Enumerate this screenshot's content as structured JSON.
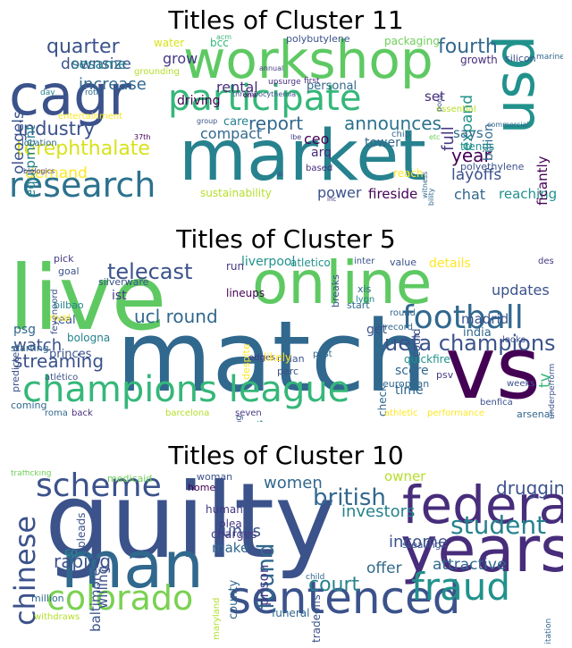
{
  "clusters": [
    {
      "title": "Titles of Cluster 11",
      "words": [
        {
          "t": "market",
          "c": "#26828e"
        },
        {
          "t": "workshop",
          "c": "#5ec962"
        },
        {
          "t": "cagr",
          "c": "#3b528b"
        },
        {
          "t": "participate",
          "c": "#35b779"
        },
        {
          "t": "usd",
          "c": "#21918c"
        },
        {
          "t": "research",
          "c": "#2c728e"
        },
        {
          "t": "terephthalate",
          "c": "#d8e219"
        },
        {
          "t": "industry",
          "c": "#3b528b"
        },
        {
          "t": "report",
          "c": "#31688e"
        },
        {
          "t": "announces",
          "c": "#2c728e"
        },
        {
          "t": "fourth",
          "c": "#31688e"
        },
        {
          "t": "quarter",
          "c": "#3b528b"
        },
        {
          "t": "increase",
          "c": "#31688e"
        },
        {
          "t": "downsize",
          "c": "#3b528b"
        },
        {
          "t": "sesame",
          "c": "#26828e"
        },
        {
          "t": "grow",
          "c": "#443983"
        },
        {
          "t": "driving",
          "c": "#440154"
        },
        {
          "t": "rental",
          "c": "#472d7b"
        },
        {
          "t": "compact",
          "c": "#31688e"
        },
        {
          "t": "year",
          "c": "#440154"
        },
        {
          "t": "layoffs",
          "c": "#3b528b"
        },
        {
          "t": "ceo",
          "c": "#440154"
        },
        {
          "t": "arq",
          "c": "#472d7b"
        },
        {
          "t": "power",
          "c": "#3b528b"
        },
        {
          "t": "fireside",
          "c": "#440154"
        },
        {
          "t": "chat",
          "c": "#31688e"
        },
        {
          "t": "reaching",
          "c": "#21918c"
        },
        {
          "t": "demand",
          "c": "#fde725"
        },
        {
          "t": "equipment",
          "c": "#26828e"
        },
        {
          "t": "oleogels",
          "c": "#3b528b"
        },
        {
          "t": "full",
          "c": "#443983"
        },
        {
          "t": "expand",
          "c": "#21918c"
        },
        {
          "t": "significantly",
          "c": "#440154"
        },
        {
          "t": "billion",
          "c": "#31688e"
        },
        {
          "t": "set",
          "c": "#472d7b"
        },
        {
          "t": "says",
          "c": "#31688e"
        },
        {
          "t": "trends",
          "c": "#21918c"
        },
        {
          "t": "polyethylene",
          "c": "#3b528b"
        },
        {
          "t": "sustainability",
          "c": "#b5de2b"
        },
        {
          "t": "tower",
          "c": "#31688e"
        },
        {
          "t": "care",
          "c": "#26828e"
        },
        {
          "t": "personal",
          "c": "#31688e"
        },
        {
          "t": "water",
          "c": "#d8e219"
        },
        {
          "t": "bcc",
          "c": "#35b779"
        },
        {
          "t": "packaging",
          "c": "#6ece58"
        },
        {
          "t": "growth",
          "c": "#472d7b"
        },
        {
          "t": "silicon",
          "c": "#3b528b"
        },
        {
          "t": "polybutylene",
          "c": "#3b528b"
        },
        {
          "t": "grounding",
          "c": "#b5de2b"
        },
        {
          "t": "essential",
          "c": "#b5de2b"
        },
        {
          "t": "entertainment",
          "c": "#fde725"
        },
        {
          "t": "reach",
          "c": "#fde725"
        },
        {
          "t": "based",
          "c": "#472d7b"
        },
        {
          "t": "location",
          "c": "#31688e"
        },
        {
          "t": "biologics",
          "c": "#443983"
        },
        {
          "t": "chip",
          "c": "#31688e"
        },
        {
          "t": "acm",
          "c": "#35b779"
        },
        {
          "t": "annual",
          "c": "#443983"
        },
        {
          "t": "first",
          "c": "#472d7b"
        },
        {
          "t": "upsurge",
          "c": "#472d7b"
        },
        {
          "t": "thrombocythemia",
          "c": "#3b528b"
        },
        {
          "t": "marine",
          "c": "#31688e"
        },
        {
          "t": "day",
          "c": "#26828e"
        },
        {
          "t": "roth",
          "c": "#31688e"
        },
        {
          "t": "group",
          "c": "#3b528b"
        },
        {
          "t": "lbe",
          "c": "#443983"
        },
        {
          "t": "37th",
          "c": "#440154"
        },
        {
          "t": "commercial",
          "c": "#31688e"
        },
        {
          "t": "etc",
          "c": "#6ece58"
        },
        {
          "t": "ai",
          "c": "#3b528b"
        },
        {
          "t": "inc",
          "c": "#443983"
        },
        {
          "t": "witness",
          "c": "#31688e"
        },
        {
          "t": "availability",
          "c": "#31688e"
        },
        {
          "t": "one",
          "c": "#440154"
        },
        {
          "t": "pony",
          "c": "#3b528b"
        }
      ]
    },
    {
      "title": "Titles of Cluster 5",
      "words": [
        {
          "t": "match",
          "c": "#31688e"
        },
        {
          "t": "live",
          "c": "#5ec962"
        },
        {
          "t": "online",
          "c": "#5ec962"
        },
        {
          "t": "vs",
          "c": "#440154"
        },
        {
          "t": "champions league",
          "c": "#35b779"
        },
        {
          "t": "football",
          "c": "#31688e"
        },
        {
          "t": "uefa champions",
          "c": "#3b528b"
        },
        {
          "t": "telecast",
          "c": "#3b528b"
        },
        {
          "t": "ucl round",
          "c": "#31688e"
        },
        {
          "t": "streaming",
          "c": "#3b528b"
        },
        {
          "t": "watch",
          "c": "#3b528b"
        },
        {
          "t": "madrid",
          "c": "#3b528b"
        },
        {
          "t": "updates",
          "c": "#3b528b"
        },
        {
          "t": "india",
          "c": "#31688e"
        },
        {
          "t": "liverpool",
          "c": "#21918c"
        },
        {
          "t": "tv",
          "c": "#35b779"
        },
        {
          "t": "details",
          "c": "#fde725"
        },
        {
          "t": "score",
          "c": "#31688e"
        },
        {
          "t": "time",
          "c": "#31688e"
        },
        {
          "t": "get",
          "c": "#3b528b"
        },
        {
          "t": "ist",
          "c": "#443983"
        },
        {
          "t": "psg",
          "c": "#31688e"
        },
        {
          "t": "real",
          "c": "#3b528b"
        },
        {
          "t": "princes",
          "c": "#3b528b"
        },
        {
          "t": "bologna",
          "c": "#26828e"
        },
        {
          "t": "atletico",
          "c": "#21918c"
        },
        {
          "t": "lineups",
          "c": "#440154"
        },
        {
          "t": "run",
          "c": "#443983"
        },
        {
          "t": "pick",
          "c": "#443983"
        },
        {
          "t": "goal",
          "c": "#3b528b"
        },
        {
          "t": "silverware",
          "c": "#3b528b"
        },
        {
          "t": "feyenoord",
          "c": "#3b528b"
        },
        {
          "t": "bilbao",
          "c": "#26828e"
        },
        {
          "t": "rival",
          "c": "#fde725"
        },
        {
          "t": "predicted",
          "c": "#3b528b"
        },
        {
          "t": "starting",
          "c": "#31688e"
        },
        {
          "t": "atlético",
          "c": "#3b528b"
        },
        {
          "t": "coming",
          "c": "#31688e"
        },
        {
          "t": "roma",
          "c": "#31688e"
        },
        {
          "t": "back",
          "c": "#472d7b"
        },
        {
          "t": "barcelona",
          "c": "#b5de2b"
        },
        {
          "t": "seven",
          "c": "#443983"
        },
        {
          "t": "edges",
          "c": "#443983"
        },
        {
          "t": "milan",
          "c": "#3b528b"
        },
        {
          "t": "parc",
          "c": "#3b528b"
        },
        {
          "t": "past",
          "c": "#31688e"
        },
        {
          "t": "likely",
          "c": "#fde725"
        },
        {
          "t": "predictions",
          "c": "#21918c"
        },
        {
          "t": "disappointing",
          "c": "#3b528b"
        },
        {
          "t": "despite",
          "c": "#fde725"
        },
        {
          "t": "start",
          "c": "#31688e"
        },
        {
          "t": "breaks",
          "c": "#3b528b"
        },
        {
          "t": "xis",
          "c": "#31688e"
        },
        {
          "t": "lyon",
          "c": "#26828e"
        },
        {
          "t": "inter",
          "c": "#3b528b"
        },
        {
          "t": "value",
          "c": "#3b528b"
        },
        {
          "t": "could",
          "c": "#3b528b"
        },
        {
          "t": "round",
          "c": "#31688e"
        },
        {
          "t": "record",
          "c": "#31688e"
        },
        {
          "t": "check",
          "c": "#31688e"
        },
        {
          "t": "quickfire",
          "c": "#21918c"
        },
        {
          "t": "european",
          "c": "#31688e"
        },
        {
          "t": "psv",
          "c": "#443983"
        },
        {
          "t": "athletic",
          "c": "#fde725"
        },
        {
          "t": "benfica",
          "c": "#3b528b"
        },
        {
          "t": "performance",
          "c": "#fde725"
        },
        {
          "t": "weeks",
          "c": "#3b528b"
        },
        {
          "t": "arsenal",
          "c": "#31688e"
        },
        {
          "t": "looks",
          "c": "#3b528b"
        },
        {
          "t": "underperform",
          "c": "#3b528b"
        },
        {
          "t": "des",
          "c": "#443983"
        }
      ]
    },
    {
      "title": "Titles of Cluster 10",
      "words": [
        {
          "t": "guilty",
          "c": "#3b528b"
        },
        {
          "t": "man",
          "c": "#31688e"
        },
        {
          "t": "years",
          "c": "#472d7b"
        },
        {
          "t": "federal",
          "c": "#472d7b"
        },
        {
          "t": "sentenced",
          "c": "#3b528b"
        },
        {
          "t": "fraud",
          "c": "#21918c"
        },
        {
          "t": "colorado",
          "c": "#7ad151"
        },
        {
          "t": "scheme",
          "c": "#3b528b"
        },
        {
          "t": "chinese",
          "c": "#3b528b"
        },
        {
          "t": "student",
          "c": "#26828e"
        },
        {
          "t": "found",
          "c": "#31688e"
        },
        {
          "t": "british",
          "c": "#31688e"
        },
        {
          "t": "drugging",
          "c": "#3b528b"
        },
        {
          "t": "women",
          "c": "#31688e"
        },
        {
          "t": "court",
          "c": "#26828e"
        },
        {
          "t": "raping",
          "c": "#3b528b"
        },
        {
          "t": "funds",
          "c": "#3b528b"
        },
        {
          "t": "investors",
          "c": "#26828e"
        },
        {
          "t": "income",
          "c": "#3b528b"
        },
        {
          "t": "offer",
          "c": "#31688e"
        },
        {
          "t": "attractive",
          "c": "#31688e"
        },
        {
          "t": "prison",
          "c": "#443983"
        },
        {
          "t": "owner",
          "c": "#b5de2b"
        },
        {
          "t": "baltimore",
          "c": "#3b528b"
        },
        {
          "t": "make",
          "c": "#31688e"
        },
        {
          "t": "county",
          "c": "#31688e"
        },
        {
          "t": "willing",
          "c": "#3b528b"
        },
        {
          "t": "charges",
          "c": "#443983"
        },
        {
          "t": "pleads",
          "c": "#3b528b"
        },
        {
          "t": "plea",
          "c": "#443983"
        },
        {
          "t": "human",
          "c": "#443983"
        },
        {
          "t": "woman",
          "c": "#3b528b"
        },
        {
          "t": "home",
          "c": "#440154"
        },
        {
          "t": "medicaid",
          "c": "#6ece58"
        },
        {
          "t": "trafficking",
          "c": "#6ece58"
        },
        {
          "t": "tradeoffs",
          "c": "#3b528b"
        },
        {
          "t": "stealing",
          "c": "#3b528b"
        },
        {
          "t": "million",
          "c": "#31688e"
        },
        {
          "t": "co",
          "c": "#21918c"
        },
        {
          "t": "withdraws",
          "c": "#b5de2b"
        },
        {
          "t": "maryland",
          "c": "#b5de2b"
        },
        {
          "t": "funeral",
          "c": "#31688e"
        },
        {
          "t": "child",
          "c": "#31688e"
        },
        {
          "t": "exploitation",
          "c": "#31688e"
        }
      ]
    }
  ]
}
